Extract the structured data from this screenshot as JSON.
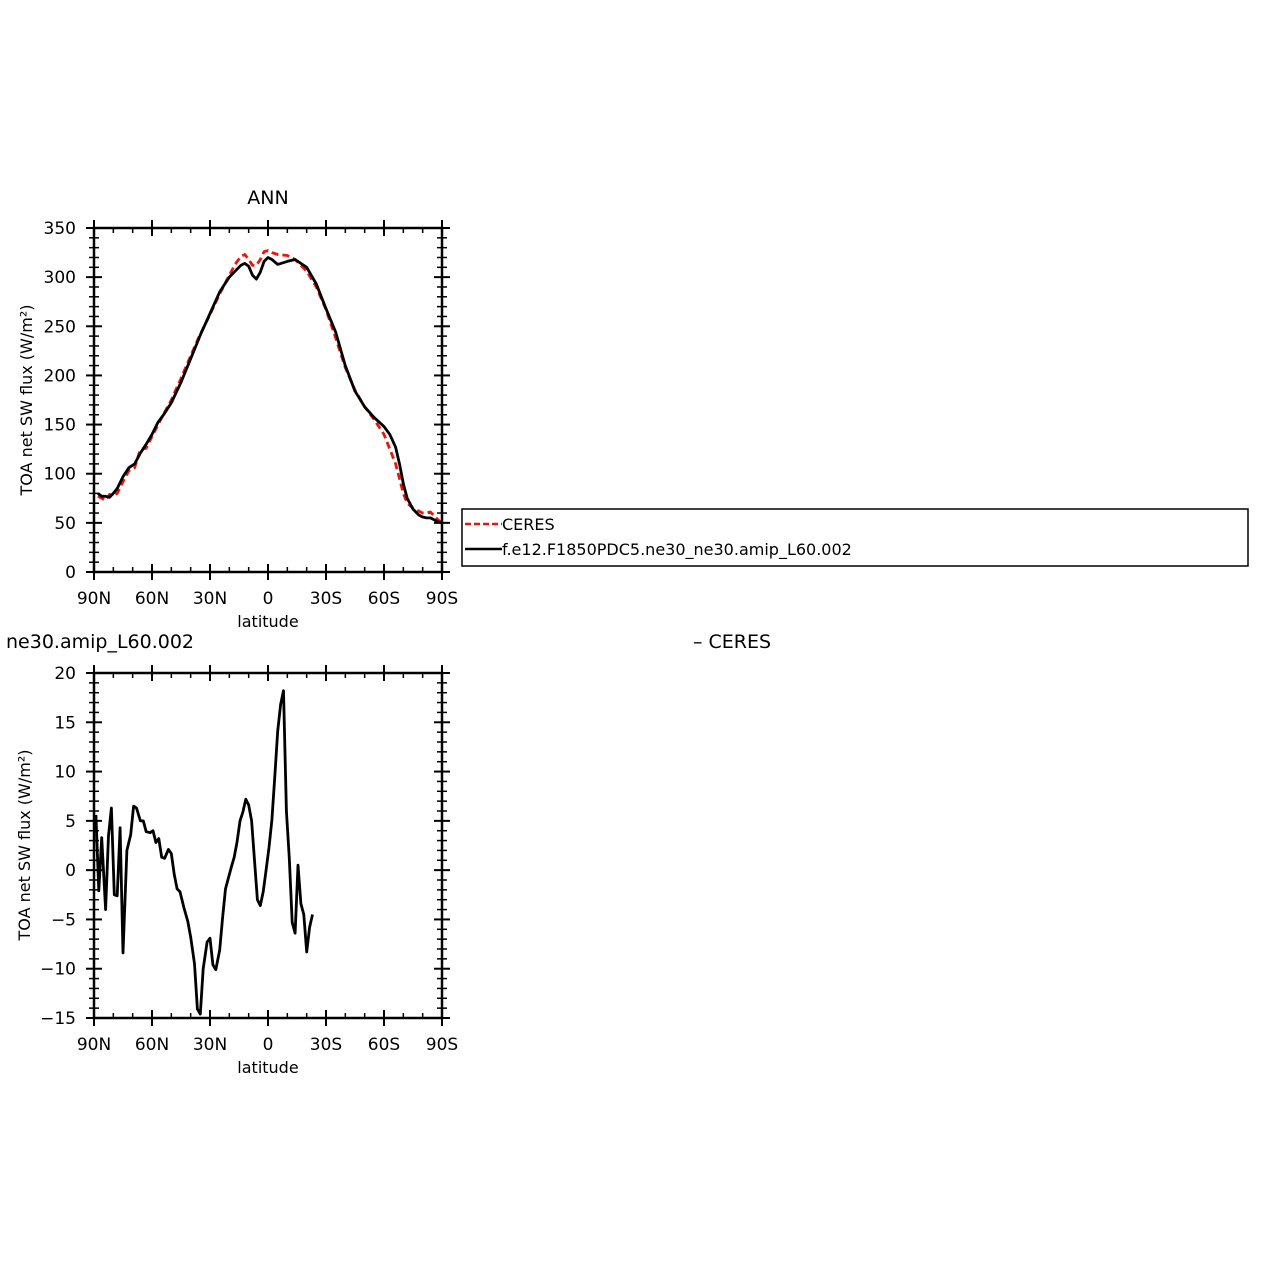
{
  "chart_data": [
    {
      "type": "line",
      "title": "ANN",
      "xlabel": "latitude",
      "ylabel": "TOA net SW flux (W/m²)",
      "xlim": [
        90,
        -90
      ],
      "ylim": [
        0,
        350
      ],
      "x_ticks": [
        90,
        60,
        30,
        0,
        -30,
        -60,
        -90
      ],
      "x_tick_labels": [
        "90N",
        "60N",
        "30N",
        "0",
        "30S",
        "60S",
        "90S"
      ],
      "y_ticks": [
        0,
        50,
        100,
        150,
        200,
        250,
        300,
        350
      ],
      "y_tick_labels": [
        "0",
        "50",
        "100",
        "150",
        "200",
        "250",
        "300",
        "350"
      ],
      "grid": false,
      "legend_position": "right",
      "series": [
        {
          "name": "CERES",
          "color": "#e8170d",
          "dash": "dashed",
          "points": [
            [
              88,
              77
            ],
            [
              86,
              75
            ],
            [
              84,
              73
            ],
            [
              82,
              79
            ],
            [
              80,
              78
            ],
            [
              78,
              80
            ],
            [
              75,
              92
            ],
            [
              72,
              103
            ],
            [
              69,
              106
            ],
            [
              66,
              125
            ],
            [
              63,
              126
            ],
            [
              60,
              138
            ],
            [
              55,
              157
            ],
            [
              50,
              175
            ],
            [
              45,
              197
            ],
            [
              40,
              220
            ],
            [
              35,
              242
            ],
            [
              30,
              262
            ],
            [
              25,
              283
            ],
            [
              20,
              302
            ],
            [
              17,
              313
            ],
            [
              14,
              321
            ],
            [
              12,
              323
            ],
            [
              10,
              318
            ],
            [
              8,
              312
            ],
            [
              6,
              312
            ],
            [
              4,
              318
            ],
            [
              2,
              326
            ],
            [
              0,
              327
            ],
            [
              -2,
              325
            ],
            [
              -5,
              323
            ],
            [
              -10,
              322
            ],
            [
              -14,
              318
            ],
            [
              -20,
              306
            ],
            [
              -25,
              290
            ],
            [
              -30,
              267
            ],
            [
              -35,
              238
            ],
            [
              -40,
              208
            ],
            [
              -45,
              185
            ],
            [
              -50,
              168
            ],
            [
              -55,
              155
            ],
            [
              -60,
              140
            ],
            [
              -63,
              125
            ],
            [
              -66,
              110
            ],
            [
              -68,
              95
            ],
            [
              -70,
              80
            ],
            [
              -72,
              70
            ],
            [
              -75,
              65
            ],
            [
              -78,
              62
            ],
            [
              -80,
              60
            ],
            [
              -82,
              60
            ],
            [
              -84,
              61
            ],
            [
              -86,
              57
            ],
            [
              -88,
              53
            ],
            [
              -90,
              50
            ]
          ]
        },
        {
          "name": "f.e12.F1850PDC5.ne30_ne30.amip_L60.002",
          "color": "#000000",
          "dash": "solid",
          "points": [
            [
              88,
              80
            ],
            [
              86,
              77
            ],
            [
              84,
              77
            ],
            [
              82,
              76
            ],
            [
              80,
              80
            ],
            [
              78,
              85
            ],
            [
              75,
              97
            ],
            [
              72,
              106
            ],
            [
              69,
              110
            ],
            [
              66,
              121
            ],
            [
              63,
              130
            ],
            [
              60,
              140
            ],
            [
              57,
              152
            ],
            [
              54,
              160
            ],
            [
              50,
              172
            ],
            [
              45,
              193
            ],
            [
              40,
              217
            ],
            [
              35,
              241
            ],
            [
              30,
              263
            ],
            [
              25,
              285
            ],
            [
              20,
              300
            ],
            [
              17,
              306
            ],
            [
              14,
              312
            ],
            [
              12,
              314
            ],
            [
              10,
              311
            ],
            [
              8,
              302
            ],
            [
              6,
              298
            ],
            [
              4,
              305
            ],
            [
              2,
              316
            ],
            [
              0,
              320
            ],
            [
              -2,
              318
            ],
            [
              -5,
              313
            ],
            [
              -10,
              316
            ],
            [
              -14,
              318
            ],
            [
              -20,
              310
            ],
            [
              -25,
              293
            ],
            [
              -30,
              268
            ],
            [
              -35,
              244
            ],
            [
              -40,
              210
            ],
            [
              -45,
              184
            ],
            [
              -50,
              168
            ],
            [
              -55,
              157
            ],
            [
              -60,
              148
            ],
            [
              -63,
              140
            ],
            [
              -66,
              127
            ],
            [
              -68,
              110
            ],
            [
              -70,
              90
            ],
            [
              -72,
              75
            ],
            [
              -75,
              64
            ],
            [
              -78,
              58
            ],
            [
              -80,
              56
            ],
            [
              -82,
              55
            ],
            [
              -84,
              55
            ],
            [
              -86,
              53
            ],
            [
              -88,
              51
            ],
            [
              -90,
              50
            ]
          ]
        }
      ],
      "legend": [
        {
          "label": "CERES",
          "color": "#e8170d",
          "dash": "dashed"
        },
        {
          "label": "f.e12.F1850PDC5.ne30_ne30.amip_L60.002",
          "color": "#000000",
          "dash": "solid"
        }
      ]
    },
    {
      "type": "line",
      "title": "ne30.amip_L60.002",
      "title_right": "– CERES",
      "xlabel": "latitude",
      "ylabel": "TOA net SW flux (W/m²)",
      "xlim": [
        90,
        -90
      ],
      "ylim": [
        -15,
        20
      ],
      "x_ticks": [
        90,
        60,
        30,
        0,
        -30,
        -60,
        -90
      ],
      "x_tick_labels": [
        "90N",
        "60N",
        "30N",
        "0",
        "30S",
        "60S",
        "90S"
      ],
      "y_ticks": [
        -15,
        -10,
        -5,
        0,
        5,
        10,
        15,
        20
      ],
      "y_tick_labels": [
        "−15",
        "−10",
        "−5",
        "0",
        "5",
        "10",
        "15",
        "20"
      ],
      "grid": false,
      "series": [
        {
          "color": "#000000",
          "dash": "solid",
          "points": [
            [
              89,
              5.6
            ],
            [
              87.5,
              -2.1
            ],
            [
              86,
              3.3
            ],
            [
              84,
              -4.0
            ],
            [
              82.5,
              3.5
            ],
            [
              81,
              6.3
            ],
            [
              79.5,
              -2.5
            ],
            [
              78,
              -2.6
            ],
            [
              76.5,
              4.3
            ],
            [
              75,
              -8.4
            ],
            [
              73,
              2.0
            ],
            [
              71,
              3.6
            ],
            [
              69.5,
              6.5
            ],
            [
              68,
              6.3
            ],
            [
              66,
              5.0
            ],
            [
              64.5,
              5.0
            ],
            [
              63,
              3.9
            ],
            [
              61,
              3.8
            ],
            [
              59.5,
              4.0
            ],
            [
              58,
              2.8
            ],
            [
              56.5,
              3.2
            ],
            [
              55,
              1.3
            ],
            [
              53.5,
              1.2
            ],
            [
              51.5,
              2.1
            ],
            [
              50,
              1.7
            ],
            [
              48.5,
              -0.4
            ],
            [
              47,
              -1.9
            ],
            [
              45.5,
              -2.2
            ],
            [
              43.5,
              -3.8
            ],
            [
              41.5,
              -5.2
            ],
            [
              40,
              -6.8
            ],
            [
              38,
              -9.5
            ],
            [
              36.5,
              -14.1
            ],
            [
              35,
              -14.6
            ],
            [
              33.5,
              -10.0
            ],
            [
              31.5,
              -7.3
            ],
            [
              30,
              -6.9
            ],
            [
              28.5,
              -9.6
            ],
            [
              27,
              -10.1
            ],
            [
              25,
              -8.1
            ],
            [
              23.5,
              -4.8
            ],
            [
              22,
              -1.9
            ],
            [
              20.5,
              -0.8
            ],
            [
              19,
              0.3
            ],
            [
              17.5,
              1.3
            ],
            [
              16,
              2.9
            ],
            [
              14.5,
              5.0
            ],
            [
              13,
              5.9
            ],
            [
              11.5,
              7.2
            ],
            [
              10,
              6.6
            ],
            [
              8.5,
              5.0
            ],
            [
              7,
              1.0
            ],
            [
              5.5,
              -3.0
            ],
            [
              4,
              -3.6
            ],
            [
              2.5,
              -2.2
            ],
            [
              1,
              0.0
            ],
            [
              -0.5,
              2.3
            ],
            [
              -2,
              5.1
            ],
            [
              -3.5,
              9.5
            ],
            [
              -5,
              14.1
            ],
            [
              -6.5,
              16.8
            ],
            [
              -8,
              18.2
            ],
            [
              -9.5,
              6.0
            ],
            [
              -11,
              1.2
            ],
            [
              -12.5,
              -5.3
            ],
            [
              -14,
              -6.4
            ],
            [
              -15.5,
              0.5
            ],
            [
              -17,
              -3.4
            ],
            [
              -18.5,
              -4.5
            ],
            [
              -20,
              -8.3
            ],
            [
              -21.5,
              -5.8
            ],
            [
              -23,
              -4.5
            ]
          ]
        }
      ]
    }
  ]
}
